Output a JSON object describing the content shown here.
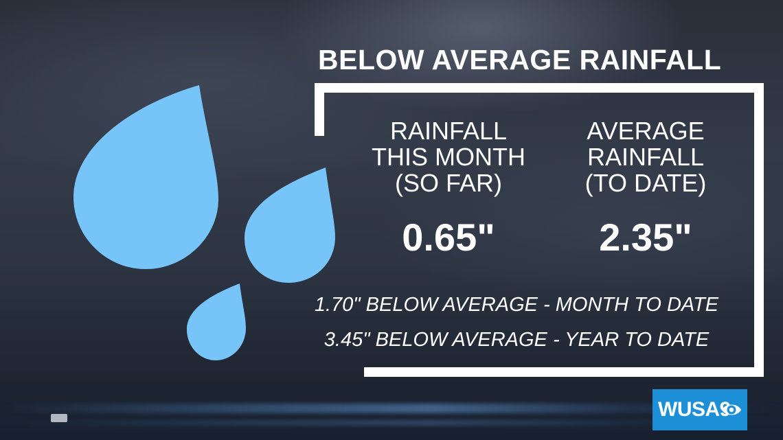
{
  "title": "BELOW AVERAGE RAINFALL",
  "columns": [
    {
      "lines": [
        "RAINFALL",
        "THIS MONTH",
        "(SO FAR)"
      ],
      "value": "0.65\""
    },
    {
      "lines": [
        "AVERAGE",
        "RAINFALL",
        "(TO DATE)"
      ],
      "value": "2.35\""
    }
  ],
  "notes": [
    "1.70\" BELOW AVERAGE - MONTH TO DATE",
    "3.45\" BELOW AVERAGE - YEAR TO DATE"
  ],
  "logo": {
    "text": "WUSA9"
  },
  "colors": {
    "drop": "#76c4f8",
    "text": "#ffffff",
    "logo_bg": "#1d8fd6"
  },
  "icons": [
    "raindrop-icon",
    "raindrop-icon",
    "raindrop-icon",
    "cbs-eye-icon"
  ]
}
